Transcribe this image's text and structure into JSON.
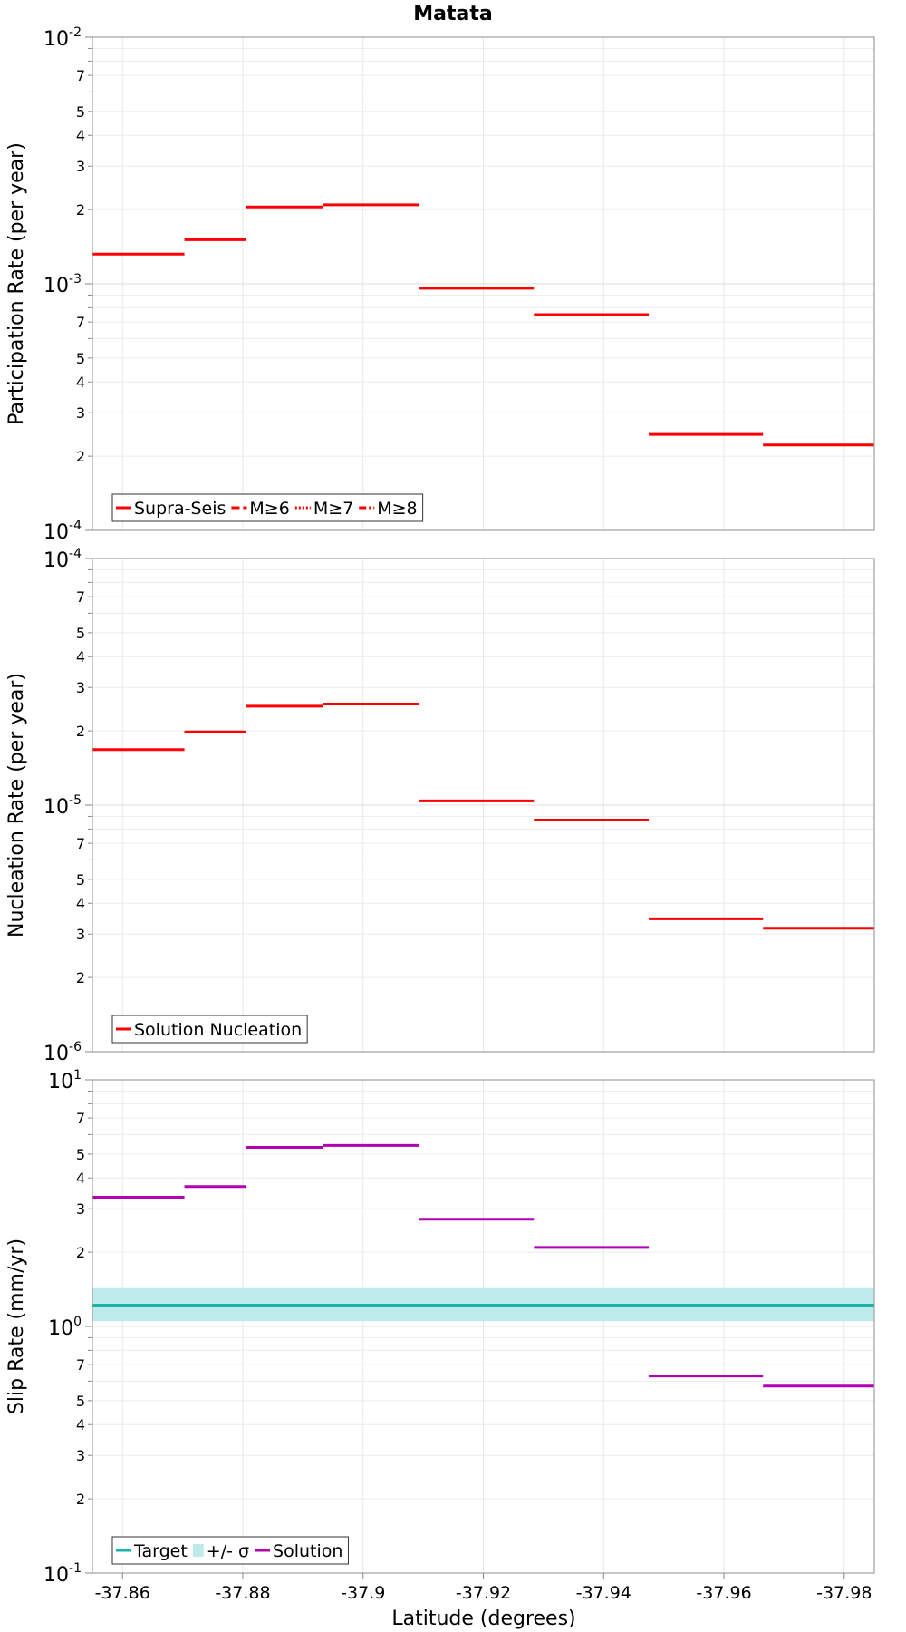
{
  "title": "Matata",
  "xlabel": "Latitude (degrees)",
  "xlim": [
    -37.855,
    -37.985
  ],
  "x_ticks": [
    -37.86,
    -37.88,
    -37.9,
    -37.92,
    -37.94,
    -37.96,
    -37.98
  ],
  "x_tick_labels": [
    "-37.86",
    "-37.88",
    "-37.9",
    "-37.92",
    "-37.94",
    "-37.96",
    "-37.98"
  ],
  "chart_data": [
    {
      "type": "line",
      "ylabel": "Participation Rate (per year)",
      "y_scale": "log",
      "ylim": [
        0.0001,
        0.01
      ],
      "legend_position": "bottom-left",
      "legend": [
        {
          "label": "Supra-Seis",
          "style": "solid",
          "color": "#ff0000"
        },
        {
          "label": "M≥6",
          "style": "dashed",
          "color": "#ff0000"
        },
        {
          "label": "M≥7",
          "style": "dotted",
          "color": "#ff0000"
        },
        {
          "label": "M≥8",
          "style": "dashdot",
          "color": "#ff0000"
        }
      ],
      "series": [
        {
          "name": "Supra-Seis",
          "color": "#ff0000",
          "style": "solid",
          "segments": [
            {
              "x": [
                -37.855,
                -37.8703
              ],
              "y": 0.00132
            },
            {
              "x": [
                -37.8703,
                -37.8806
              ],
              "y": 0.00151
            },
            {
              "x": [
                -37.8806,
                -37.8934
              ],
              "y": 0.00205
            },
            {
              "x": [
                -37.8934,
                -37.9093
              ],
              "y": 0.00209
            },
            {
              "x": [
                -37.9093,
                -37.9284
              ],
              "y": 0.00096
            },
            {
              "x": [
                -37.9284,
                -37.9475
              ],
              "y": 0.00075
            },
            {
              "x": [
                -37.9475,
                -37.9665
              ],
              "y": 0.000245
            },
            {
              "x": [
                -37.9665,
                -37.985
              ],
              "y": 0.000222
            }
          ]
        }
      ]
    },
    {
      "type": "line",
      "ylabel": "Nucleation Rate (per year)",
      "y_scale": "log",
      "ylim": [
        1e-06,
        0.0001
      ],
      "legend_position": "bottom-left",
      "legend": [
        {
          "label": "Solution Nucleation",
          "style": "solid",
          "color": "#ff0000"
        }
      ],
      "series": [
        {
          "name": "Solution Nucleation",
          "color": "#ff0000",
          "style": "solid",
          "segments": [
            {
              "x": [
                -37.855,
                -37.8703
              ],
              "y": 1.68e-05
            },
            {
              "x": [
                -37.8703,
                -37.8806
              ],
              "y": 1.98e-05
            },
            {
              "x": [
                -37.8806,
                -37.8934
              ],
              "y": 2.52e-05
            },
            {
              "x": [
                -37.8934,
                -37.9093
              ],
              "y": 2.57e-05
            },
            {
              "x": [
                -37.9093,
                -37.9284
              ],
              "y": 1.04e-05
            },
            {
              "x": [
                -37.9284,
                -37.9475
              ],
              "y": 8.7e-06
            },
            {
              "x": [
                -37.9475,
                -37.9665
              ],
              "y": 3.46e-06
            },
            {
              "x": [
                -37.9665,
                -37.985
              ],
              "y": 3.17e-06
            }
          ]
        }
      ]
    },
    {
      "type": "line",
      "ylabel": "Slip Rate (mm/yr)",
      "y_scale": "log",
      "ylim": [
        0.1,
        10
      ],
      "legend_position": "bottom-left",
      "legend": [
        {
          "label": "Target",
          "style": "solid",
          "color": "#1ab3a6"
        },
        {
          "label": "+/- σ",
          "style": "band",
          "color": "#bfeaea"
        },
        {
          "label": "Solution",
          "style": "solid",
          "color": "#b200b2"
        }
      ],
      "band": {
        "name": "+/- σ",
        "color": "#bfeaea",
        "lower": 1.05,
        "upper": 1.43
      },
      "target": {
        "name": "Target",
        "color": "#1ab3a6",
        "y": 1.22
      },
      "series": [
        {
          "name": "Solution",
          "color": "#b200b2",
          "style": "solid",
          "segments": [
            {
              "x": [
                -37.855,
                -37.8703
              ],
              "y": 3.34
            },
            {
              "x": [
                -37.8703,
                -37.8806
              ],
              "y": 3.69
            },
            {
              "x": [
                -37.8806,
                -37.8934
              ],
              "y": 5.32
            },
            {
              "x": [
                -37.8934,
                -37.9093
              ],
              "y": 5.42
            },
            {
              "x": [
                -37.9093,
                -37.9284
              ],
              "y": 2.72
            },
            {
              "x": [
                -37.9284,
                -37.9475
              ],
              "y": 2.09
            },
            {
              "x": [
                -37.9475,
                -37.9665
              ],
              "y": 0.63
            },
            {
              "x": [
                -37.9665,
                -37.985
              ],
              "y": 0.573
            }
          ]
        }
      ]
    }
  ]
}
